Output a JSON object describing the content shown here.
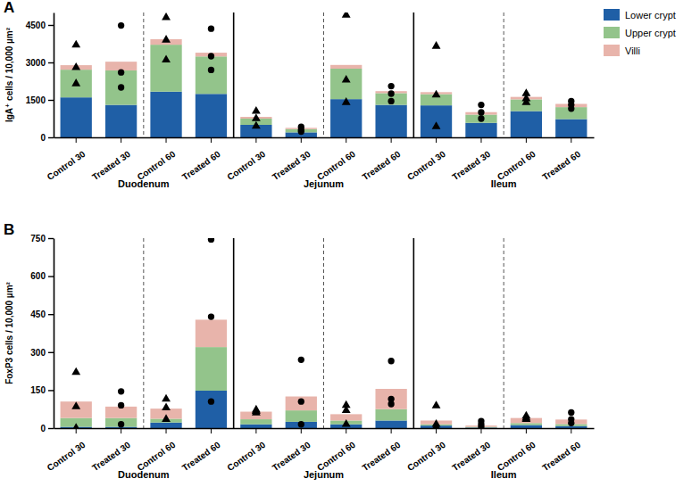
{
  "chart_data": [
    {
      "type": "bar",
      "title": "A",
      "stacked": true,
      "legend": "right",
      "y_label": "IgA⁺ cells / 10,000 µm²",
      "categories": [
        "Control 30",
        "Treated 30",
        "Control 60",
        "Treated 60",
        "Control 30",
        "Treated 30",
        "Control 60",
        "Treated 60",
        "Control 30",
        "Treated 30",
        "Control 60",
        "Treated 60"
      ],
      "groups": [
        "Duodenum",
        "Jejunum",
        "Ileum"
      ],
      "ylim": [
        0,
        5000
      ],
      "yticks": [
        0,
        1500,
        3000,
        4500
      ],
      "series": [
        {
          "name": "Lower crypt",
          "color": "#1f5fa6",
          "values": [
            1600,
            1300,
            1830,
            1740,
            500,
            200,
            1530,
            1300,
            1280,
            580,
            1050,
            730
          ]
        },
        {
          "name": "Upper crypt",
          "color": "#93c48b",
          "values": [
            1110,
            1380,
            1880,
            1500,
            250,
            130,
            1220,
            470,
            450,
            330,
            470,
            480
          ]
        },
        {
          "name": "Villi",
          "color": "#e8b4ab",
          "values": [
            180,
            350,
            220,
            150,
            70,
            50,
            150,
            80,
            80,
            100,
            100,
            130
          ]
        }
      ],
      "points": {
        "marker": [
          "triangle",
          "circle",
          "triangle",
          "circle",
          "triangle",
          "circle",
          "triangle",
          "circle",
          "triangle",
          "circle",
          "triangle",
          "circle"
        ],
        "values": [
          [
            3700,
            2800,
            2150
          ],
          [
            4480,
            2600,
            2000
          ],
          [
            4800,
            3900,
            3100
          ],
          [
            4350,
            3250,
            2700
          ],
          [
            1050,
            750,
            450
          ],
          [
            420,
            300,
            230
          ],
          [
            4900,
            2300,
            1400
          ],
          [
            2050,
            1750,
            1450
          ],
          [
            3650,
            1700,
            430
          ],
          [
            1300,
            1000,
            750
          ],
          [
            1750,
            1550,
            1400
          ],
          [
            1450,
            1300,
            1150
          ]
        ]
      }
    },
    {
      "type": "bar",
      "title": "B",
      "stacked": true,
      "legend": false,
      "y_label": "FoxP3 cells / 10,000 µm²",
      "categories": [
        "Control 30",
        "Treated 30",
        "Control 60",
        "Treated 60",
        "Control 30",
        "Treated 30",
        "Control 60",
        "Treated 60",
        "Control 30",
        "Treated 30",
        "Control 60",
        "Treated 60"
      ],
      "groups": [
        "Duodenum",
        "Jejunum",
        "Ileum"
      ],
      "ylim": [
        0,
        750
      ],
      "yticks": [
        0,
        150,
        300,
        450,
        600,
        750
      ],
      "series": [
        {
          "name": "Lower crypt",
          "color": "#1f5fa6",
          "values": [
            5,
            5,
            22,
            148,
            15,
            25,
            15,
            30,
            10,
            2,
            12,
            8
          ]
        },
        {
          "name": "Upper crypt",
          "color": "#93c48b",
          "values": [
            35,
            35,
            15,
            172,
            20,
            45,
            15,
            45,
            5,
            3,
            8,
            8
          ]
        },
        {
          "name": "Villi",
          "color": "#e8b4ab",
          "values": [
            65,
            45,
            40,
            108,
            30,
            55,
            25,
            80,
            15,
            5,
            20,
            18
          ]
        }
      ],
      "points": {
        "marker": [
          "triangle",
          "circle",
          "triangle",
          "circle",
          "triangle",
          "circle",
          "triangle",
          "circle",
          "triangle",
          "circle",
          "triangle",
          "circle"
        ],
        "values": [
          [
            220,
            85,
            0
          ],
          [
            145,
            90,
            15
          ],
          [
            115,
            80,
            35
          ],
          [
            745,
            440,
            105
          ],
          [
            72,
            66,
            60
          ],
          [
            270,
            105,
            15
          ],
          [
            90,
            70,
            15
          ],
          [
            265,
            115,
            95
          ],
          [
            88,
            15,
            5
          ],
          [
            28,
            15,
            5
          ],
          [
            48,
            40,
            35
          ],
          [
            62,
            35,
            20
          ]
        ]
      }
    }
  ]
}
